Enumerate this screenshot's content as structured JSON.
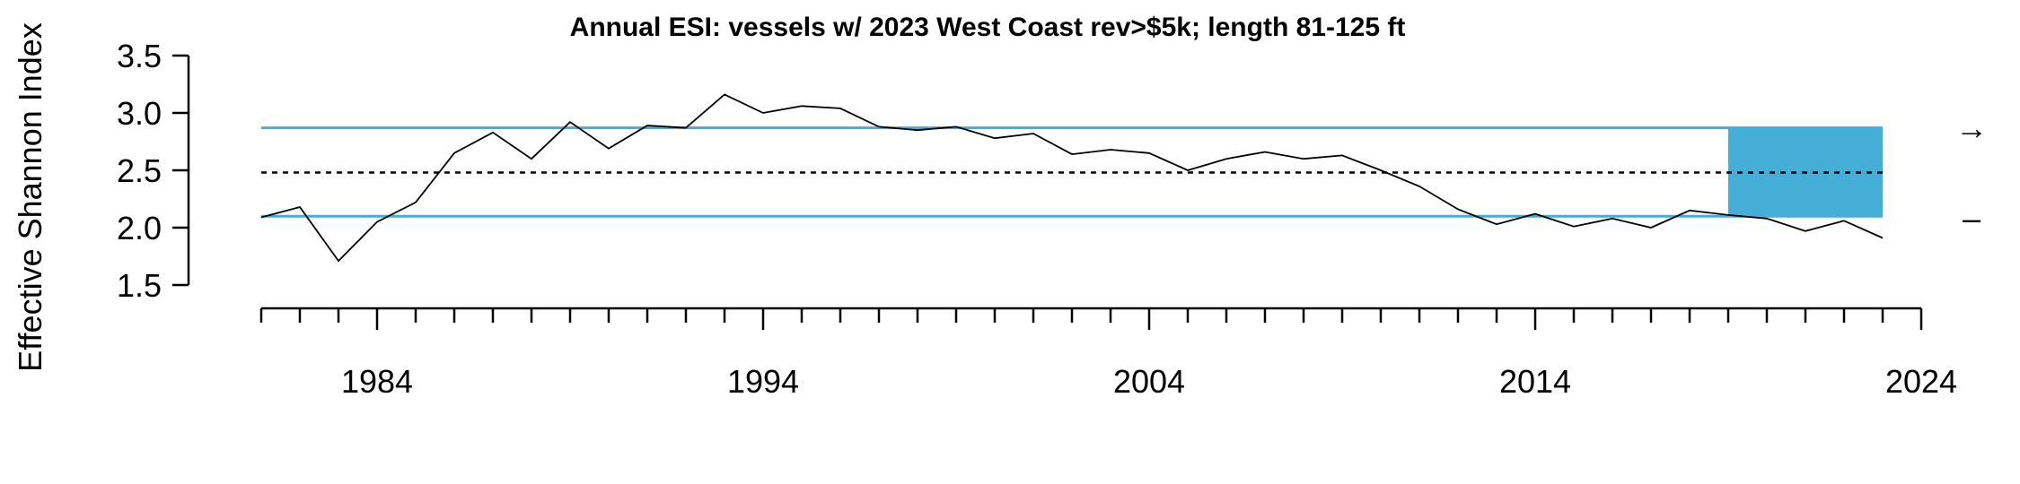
{
  "chart_data": {
    "type": "line",
    "title": "Annual ESI: vessels w/ 2023 West Coast rev>$5k; length 81-125 ft",
    "ylabel": "Effective Shannon Index",
    "xlabel": "",
    "ylim": [
      1.5,
      3.5
    ],
    "y_ticks": [
      "1.5",
      "2.0",
      "2.5",
      "3.0",
      "3.5"
    ],
    "xlim": [
      1981,
      2024
    ],
    "x_major_ticks": [
      "1984",
      "1994",
      "2004",
      "2014",
      "2024"
    ],
    "grid": false,
    "series": [
      {
        "x": [
          1981,
          1982,
          1983,
          1984,
          1985,
          1986,
          1987,
          1988,
          1989,
          1990,
          1991,
          1992,
          1993,
          1994,
          1995,
          1996,
          1997,
          1998,
          1999,
          2000,
          2001,
          2002,
          2003,
          2004,
          2005,
          2006,
          2007,
          2008,
          2009,
          2010,
          2011,
          2012,
          2013,
          2014,
          2015,
          2016,
          2017,
          2018,
          2019,
          2020,
          2021,
          2022,
          2023
        ],
        "values": [
          2.09,
          2.18,
          1.71,
          2.05,
          2.22,
          2.65,
          2.83,
          2.6,
          2.92,
          2.69,
          2.89,
          2.87,
          3.16,
          3.0,
          3.06,
          3.04,
          2.88,
          2.85,
          2.88,
          2.78,
          2.82,
          2.64,
          2.68,
          2.65,
          2.5,
          2.6,
          2.66,
          2.6,
          2.63,
          2.5,
          2.36,
          2.16,
          2.03,
          2.12,
          2.01,
          2.08,
          2.0,
          2.15,
          2.11,
          2.08,
          1.97,
          2.06,
          1.91
        ]
      }
    ],
    "mean_line": 2.48,
    "sd_band": [
      2.1,
      2.87
    ],
    "highlight_window": {
      "x": [
        2019,
        2023
      ],
      "y": [
        2.1,
        2.87
      ]
    },
    "trend_indicators": {
      "trend": "→",
      "mean": "–"
    },
    "colors": {
      "band": "#44aed6",
      "line": "#000000"
    }
  }
}
